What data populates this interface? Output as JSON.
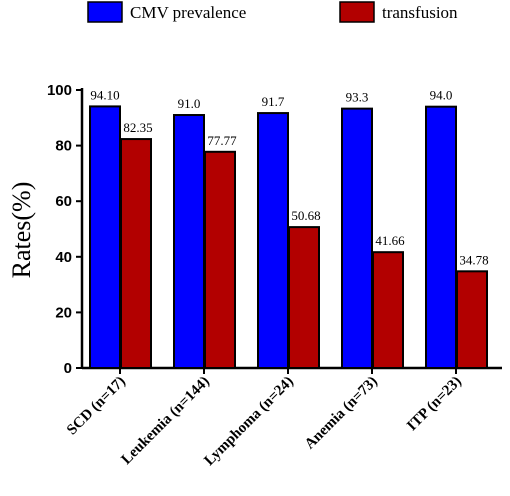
{
  "chart_data": {
    "type": "bar",
    "categories": [
      "SCD (n=17)",
      "Leukemia (n=144)",
      "Lymphoma (n=24)",
      "Anemia (n=73)",
      "ITP (n=23)"
    ],
    "series": [
      {
        "name": "CMV prevalence",
        "color": "#0000ff",
        "values": [
          94.1,
          91.0,
          91.7,
          93.3,
          94.0
        ],
        "value_labels": [
          "94.10",
          "91.0",
          "91.7",
          "93.3",
          "94.0"
        ]
      },
      {
        "name": "transfusion",
        "color": "#b20000",
        "values": [
          82.35,
          77.77,
          50.68,
          41.66,
          34.78
        ],
        "value_labels": [
          "82.35",
          "77.77",
          "50.68",
          "41.66",
          "34.78"
        ]
      }
    ],
    "ylabel": "Rates(%)",
    "xlabel": "",
    "ylim": [
      0,
      100
    ],
    "yticks": [
      0,
      20,
      40,
      60,
      80,
      100
    ],
    "grid": false,
    "legend_position": "top"
  }
}
